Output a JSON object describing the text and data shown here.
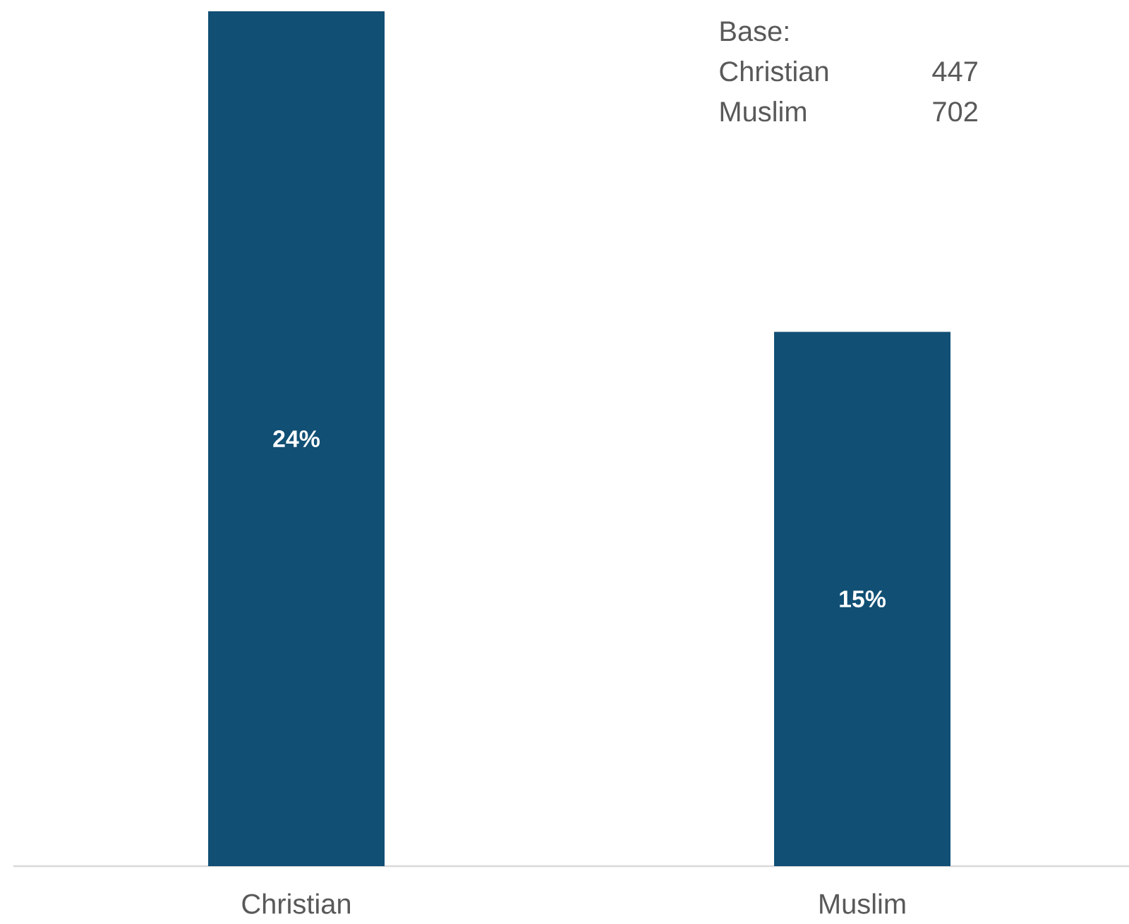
{
  "chart_data": {
    "type": "bar",
    "categories": [
      "Christian",
      "Muslim"
    ],
    "values": [
      24,
      15
    ],
    "color": "#114f74",
    "value_labels": [
      "24%",
      "15%"
    ],
    "annotations": [
      "Base:",
      "Christian",
      "447",
      "Muslim",
      "702"
    ]
  }
}
